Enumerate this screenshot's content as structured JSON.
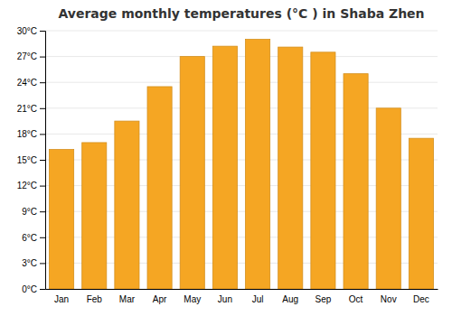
{
  "chart_data": {
    "type": "bar",
    "title": "Average monthly temperatures (°C ) in Shaba Zhen",
    "categories": [
      "Jan",
      "Feb",
      "Mar",
      "Apr",
      "May",
      "Jun",
      "Jul",
      "Aug",
      "Sep",
      "Oct",
      "Nov",
      "Dec"
    ],
    "values": [
      16.2,
      17.0,
      19.5,
      23.5,
      27.0,
      28.2,
      29.0,
      28.1,
      27.5,
      25.0,
      21.0,
      17.5
    ],
    "color": "#F5A623",
    "ylim": [
      0,
      30
    ],
    "yticks": [
      {
        "value": 0,
        "label": "0°C"
      },
      {
        "value": 3,
        "label": "3°C"
      },
      {
        "value": 6,
        "label": "6°C"
      },
      {
        "value": 9,
        "label": "9°C"
      },
      {
        "value": 12,
        "label": "12°C"
      },
      {
        "value": 15,
        "label": "15°C"
      },
      {
        "value": 18,
        "label": "18°C"
      },
      {
        "value": 21,
        "label": "21°C"
      },
      {
        "value": 24,
        "label": "24°C"
      },
      {
        "value": 27,
        "label": "27°C"
      },
      {
        "value": 30,
        "label": "30°C"
      }
    ],
    "grid": true
  }
}
